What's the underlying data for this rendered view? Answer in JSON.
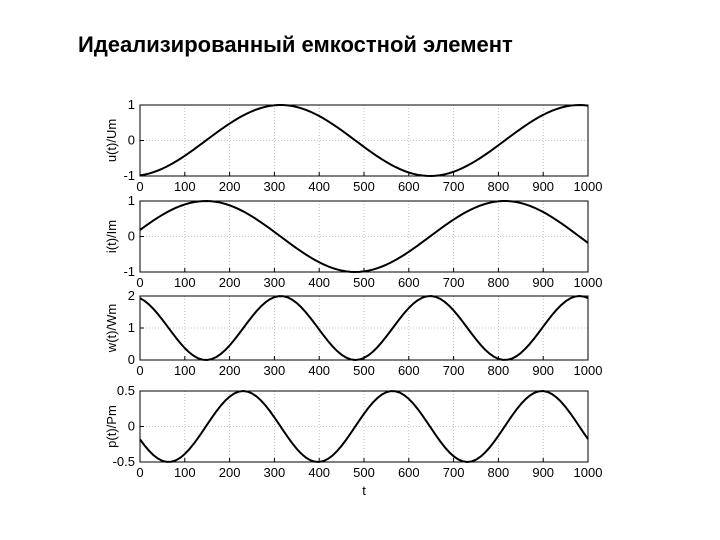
{
  "slide": {
    "title": "Идеализированный емкостной элемент"
  },
  "chart_data": [
    {
      "type": "line",
      "ylabel": "u(t)/Um",
      "xlabel": "",
      "xlim": [
        0,
        1000
      ],
      "ylim": [
        -1,
        1
      ],
      "x_ticks": [
        "0",
        "100",
        "200",
        "300",
        "400",
        "500",
        "600",
        "700",
        "800",
        "900",
        "1000"
      ],
      "y_ticks": [
        "-1",
        "0",
        "1"
      ],
      "grid": true,
      "series": [
        {
          "function": "cos(2π(t−314)/667)",
          "x_step": 10,
          "color": "#000000"
        }
      ]
    },
    {
      "type": "line",
      "ylabel": "i(t)/Im",
      "xlabel": "",
      "xlim": [
        0,
        1000
      ],
      "ylim": [
        -1,
        1
      ],
      "x_ticks": [
        "0",
        "100",
        "200",
        "300",
        "400",
        "500",
        "600",
        "700",
        "800",
        "900",
        "1000"
      ],
      "y_ticks": [
        "-1",
        "0",
        "1"
      ],
      "grid": true,
      "series": [
        {
          "function": "cos(2π(t−147)/667)",
          "x_step": 10,
          "color": "#000000"
        }
      ]
    },
    {
      "type": "line",
      "ylabel": "w(t)/Wm",
      "xlabel": "",
      "xlim": [
        0,
        1000
      ],
      "ylim": [
        0,
        2
      ],
      "x_ticks": [
        "0",
        "100",
        "200",
        "300",
        "400",
        "500",
        "600",
        "700",
        "800",
        "900",
        "1000"
      ],
      "y_ticks": [
        "0",
        "1",
        "2"
      ],
      "grid": true,
      "series": [
        {
          "function": "1 + cos(4π(t−314)/667)",
          "x_step": 10,
          "color": "#000000"
        }
      ]
    },
    {
      "type": "line",
      "ylabel": "p(t)/Pm",
      "xlabel": "t",
      "xlim": [
        0,
        1000
      ],
      "ylim": [
        -0.5,
        0.5
      ],
      "x_ticks": [
        "0",
        "100",
        "200",
        "300",
        "400",
        "500",
        "600",
        "700",
        "800",
        "900",
        "1000"
      ],
      "y_ticks": [
        "-0.5",
        "0",
        "0.5"
      ],
      "grid": true,
      "series": [
        {
          "function": "0.5·sin(4π(t−147)/667)",
          "x_step": 10,
          "color": "#000000"
        }
      ]
    }
  ]
}
